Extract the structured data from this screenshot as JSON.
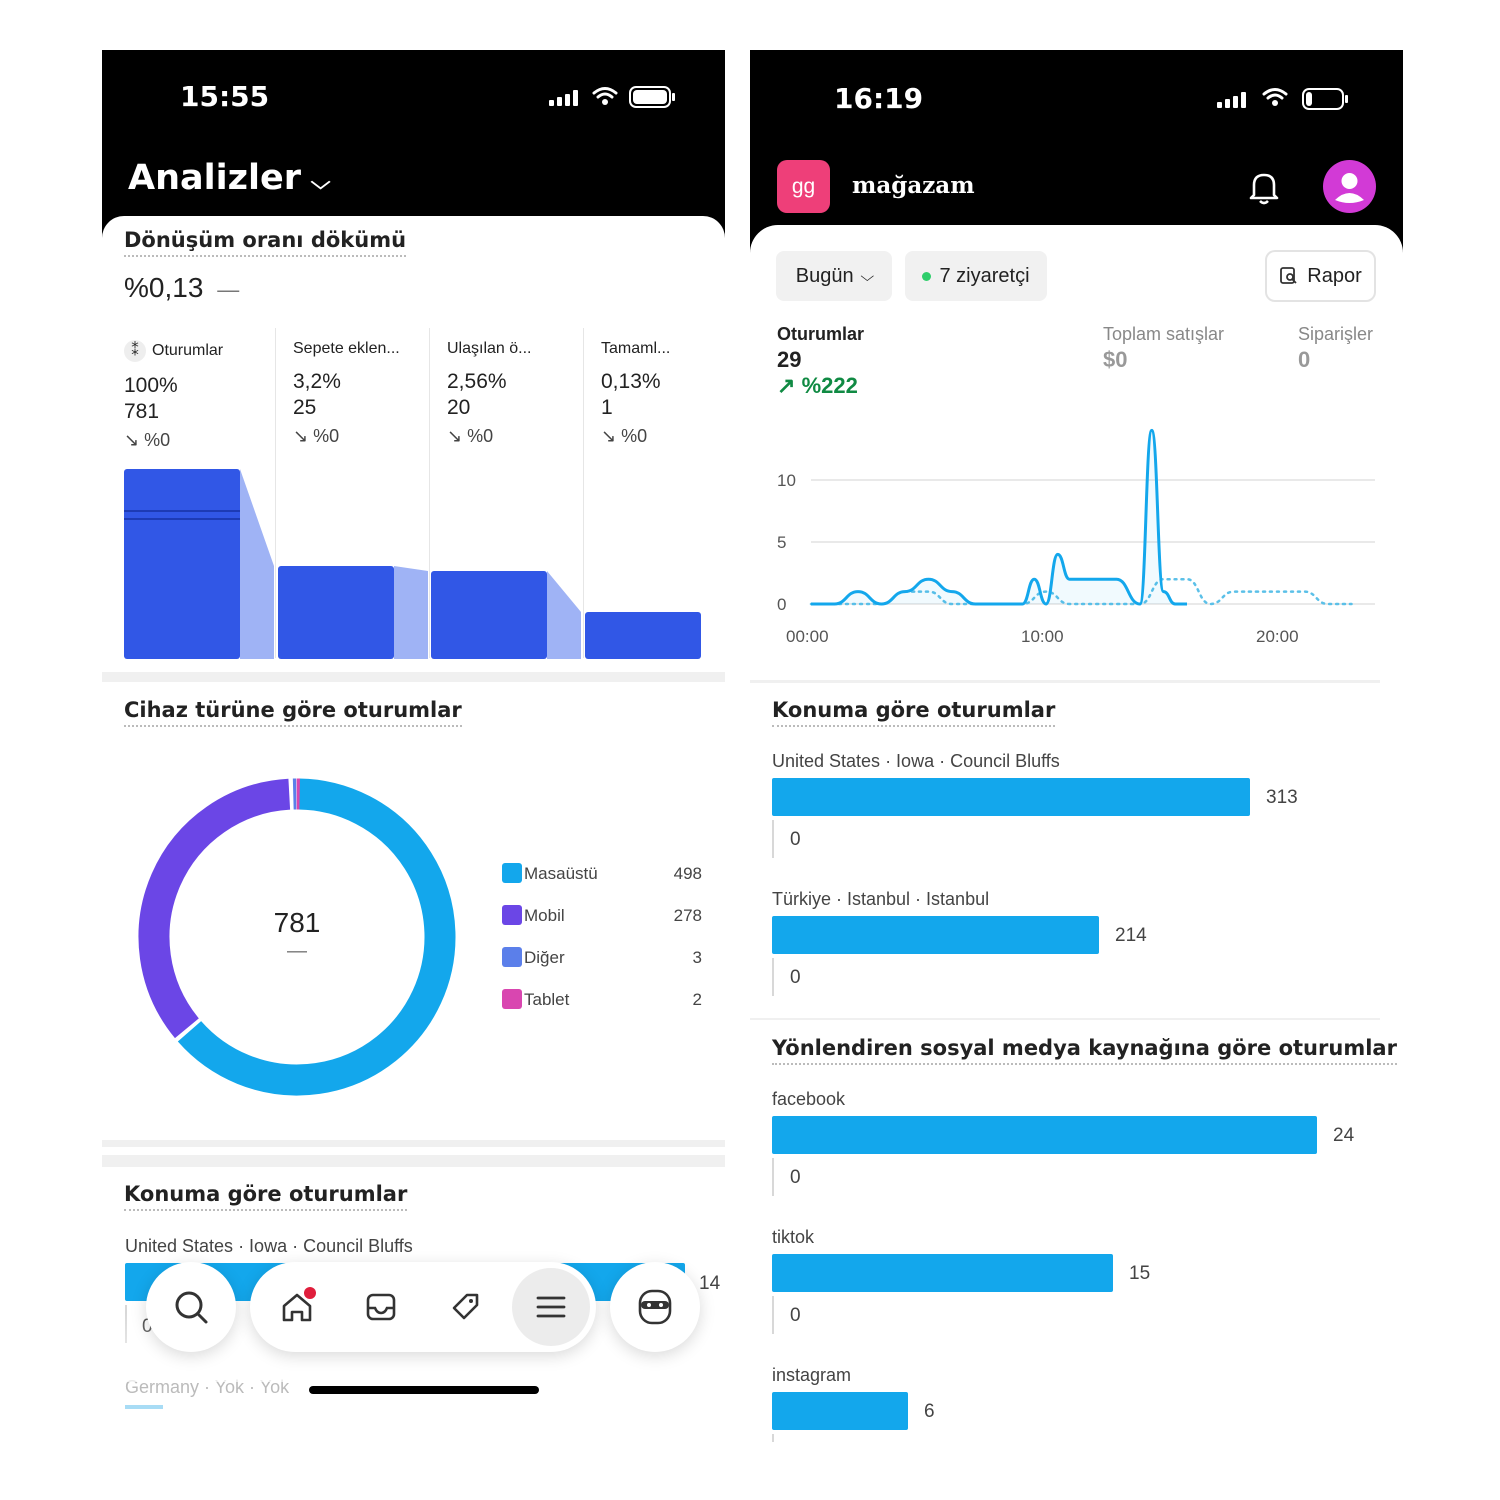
{
  "left": {
    "status_time": "15:55",
    "header_title": "Analizler",
    "funnel": {
      "title": "Dönüşüm oranı dökümü",
      "rate": "%0,13",
      "rate_dash": "—",
      "steps": [
        {
          "label": "Oturumlar",
          "pct": "100%",
          "count": "781",
          "change": "↘ %0",
          "value": 781
        },
        {
          "label": "Sepete eklen...",
          "pct": "3,2%",
          "count": "25",
          "change": "↘ %0",
          "value": 25
        },
        {
          "label": "Ulaşılan ö...",
          "pct": "2,56%",
          "count": "20",
          "change": "↘ %0",
          "value": 20
        },
        {
          "label": "Tamaml...",
          "pct": "0,13%",
          "count": "1",
          "change": "↘ %0",
          "value": 1
        }
      ]
    },
    "device": {
      "title": "Cihaz türüne göre oturumlar",
      "total": "781",
      "total_dash": "—",
      "items": [
        {
          "name": "Masaüstü",
          "value": 498,
          "color": "#13a7ec"
        },
        {
          "name": "Mobil",
          "value": 278,
          "color": "#6b46e6"
        },
        {
          "name": "Diğer",
          "value": 3,
          "color": "#5b7fea"
        },
        {
          "name": "Tablet",
          "value": 2,
          "color": "#d946b0"
        }
      ]
    },
    "location": {
      "title": "Konuma göre oturumlar",
      "first": "United States · Iowa · Council Bluffs",
      "first_value": "14",
      "first_zero": "0",
      "second": "Germany · Yok · Yok"
    }
  },
  "right": {
    "status_time": "16:19",
    "store_badge": "gg",
    "store_name": "mağazam",
    "filters": {
      "date": "Bugün",
      "visitors": "7 ziyaretçi",
      "report": "Rapor"
    },
    "metrics": [
      {
        "label": "Oturumlar",
        "value": "29",
        "change": "%222"
      },
      {
        "label": "Toplam satışlar",
        "value": "$0"
      },
      {
        "label": "Siparişler",
        "value": "0"
      }
    ],
    "chart_data": {
      "type": "line",
      "x_ticks": [
        "00:00",
        "10:00",
        "20:00"
      ],
      "y_ticks": [
        "0",
        "5",
        "10"
      ],
      "ylim": [
        0,
        14
      ],
      "series": [
        {
          "x": [
            0,
            1,
            2,
            3,
            4,
            5,
            6,
            7,
            8,
            9,
            9.5,
            10,
            10.5,
            11,
            12,
            13,
            14,
            14.5,
            15,
            15.5,
            16,
            17,
            18,
            19,
            20,
            21,
            22,
            23
          ],
          "values": [
            0,
            0,
            1,
            0,
            1,
            2,
            1,
            0,
            0,
            0,
            2,
            0,
            4,
            2,
            2,
            2,
            0,
            14,
            1,
            0,
            0,
            0,
            0,
            0,
            0,
            0,
            0,
            0
          ]
        },
        {
          "x": [
            0,
            1,
            2,
            3,
            4,
            5,
            6,
            7,
            8,
            9,
            10,
            11,
            12,
            13,
            14,
            15,
            16,
            17,
            18,
            19,
            20,
            21,
            22,
            23
          ],
          "values": [
            0,
            0,
            0,
            0,
            1,
            1,
            0,
            0,
            0,
            0,
            1,
            0,
            0,
            0,
            0,
            2,
            2,
            0,
            1,
            1,
            1,
            1,
            0,
            0
          ]
        }
      ]
    },
    "location": {
      "title": "Konuma göre oturumlar",
      "rows": [
        {
          "label": "United States · Iowa · Council Bluffs",
          "value": 313,
          "prev": "0"
        },
        {
          "label": "Türkiye · Istanbul · Istanbul",
          "value": 214,
          "prev": "0"
        }
      ]
    },
    "social": {
      "title": "Yönlendiren sosyal medya kaynağına göre oturumlar",
      "rows": [
        {
          "label": "facebook",
          "value": 24,
          "prev": "0"
        },
        {
          "label": "tiktok",
          "value": 15,
          "prev": "0"
        },
        {
          "label": "instagram",
          "value": 6
        }
      ]
    }
  }
}
